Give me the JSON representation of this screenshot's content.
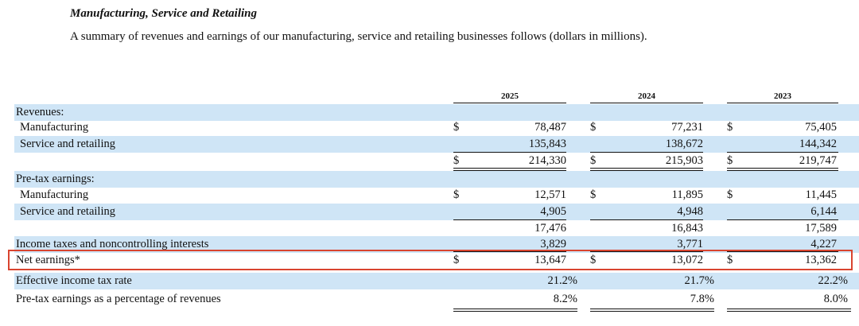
{
  "section": {
    "title": "Manufacturing, Service and Retailing",
    "description": "A summary of revenues and earnings of our manufacturing, service and retailing businesses follows (dollars in millions)."
  },
  "columns": [
    "2025",
    "2024",
    "2023"
  ],
  "currency_symbol": "$",
  "rows": {
    "revenues_header": "Revenues:",
    "rev_manufacturing": {
      "label": "Manufacturing",
      "values": [
        "78,487",
        "77,231",
        "75,405"
      ]
    },
    "rev_service": {
      "label": "Service and retailing",
      "values": [
        "135,843",
        "138,672",
        "144,342"
      ]
    },
    "rev_total": {
      "label": "",
      "values": [
        "214,330",
        "215,903",
        "219,747"
      ]
    },
    "pretax_header": "Pre-tax earnings:",
    "pre_manufacturing": {
      "label": "Manufacturing",
      "values": [
        "12,571",
        "11,895",
        "11,445"
      ]
    },
    "pre_service": {
      "label": "Service and retailing",
      "values": [
        "4,905",
        "4,948",
        "6,144"
      ]
    },
    "pre_total": {
      "label": "",
      "values": [
        "17,476",
        "16,843",
        "17,589"
      ]
    },
    "income_taxes": {
      "label": "Income taxes and noncontrolling interests",
      "values": [
        "3,829",
        "3,771",
        "4,227"
      ]
    },
    "net_earnings": {
      "label": "Net earnings*",
      "values": [
        "13,647",
        "13,072",
        "13,362"
      ]
    },
    "tax_rate": {
      "label": "Effective income tax rate",
      "values": [
        "21.2%",
        "21.7%",
        "22.2%"
      ]
    },
    "pretax_pct": {
      "label": "Pre-tax earnings as a percentage of revenues",
      "values": [
        "8.2%",
        "7.8%",
        "8.0%"
      ]
    }
  },
  "highlight_color": "#d9442f"
}
